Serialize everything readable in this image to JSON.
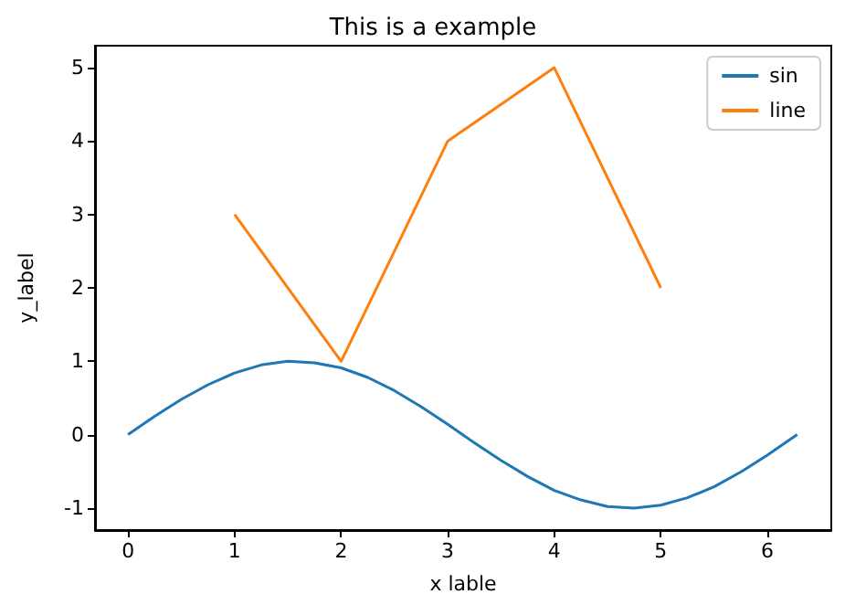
{
  "chart_data": {
    "type": "line",
    "title": "This is a example",
    "xlabel": "x lable",
    "ylabel": "y_label",
    "xlim": [
      -0.31,
      6.6
    ],
    "xticks": [
      0,
      1,
      2,
      3,
      4,
      5,
      6
    ],
    "ylim": [
      -1.3,
      5.3
    ],
    "yticks": [
      -1,
      0,
      1,
      2,
      3,
      4,
      5
    ],
    "grid": false,
    "legend": "top right",
    "series": [
      {
        "name": "sin",
        "color": "#1f77b4",
        "x": [
          0,
          0.25,
          0.5,
          0.75,
          1,
          1.25,
          1.5,
          1.75,
          2,
          2.25,
          2.5,
          2.75,
          3,
          3.25,
          3.5,
          3.75,
          4,
          4.25,
          4.5,
          4.75,
          5,
          5.25,
          5.5,
          5.75,
          6,
          6.28
        ],
        "values": [
          0,
          0.25,
          0.48,
          0.68,
          0.84,
          0.95,
          1.0,
          0.98,
          0.91,
          0.78,
          0.6,
          0.38,
          0.14,
          -0.11,
          -0.35,
          -0.57,
          -0.76,
          -0.89,
          -0.98,
          -1.0,
          -0.96,
          -0.86,
          -0.71,
          -0.51,
          -0.28,
          0
        ]
      },
      {
        "name": "line",
        "color": "#ff7f0e",
        "x": [
          1,
          2,
          3,
          4,
          5
        ],
        "values": [
          3,
          1,
          4,
          5,
          2
        ]
      }
    ]
  }
}
